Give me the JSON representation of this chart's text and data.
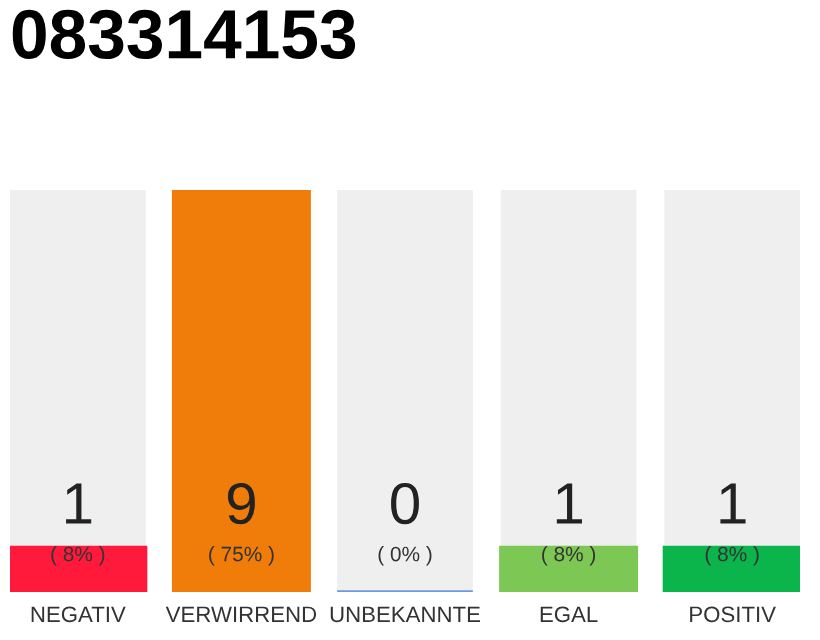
{
  "chart_data": {
    "type": "bar",
    "title": "083314153",
    "categories": [
      "NEGATIV",
      "VERWIRREND",
      "UNBEKANNTE",
      "EGAL",
      "POSITIV"
    ],
    "values": [
      1,
      9,
      0,
      1,
      1
    ],
    "colors": [
      "#ff1a3c",
      "#f07d0a",
      "#6a9be0",
      "#7dc855",
      "#0cb44c"
    ],
    "value_labels": [
      "1\n( 8% )",
      "9\n( 75% )",
      "0\n( 0% )",
      "1\n( 8% )",
      "1\n( 8% )"
    ],
    "ylim": [
      0,
      9
    ],
    "tick_labels": "x",
    "grid": false,
    "legend": false
  }
}
